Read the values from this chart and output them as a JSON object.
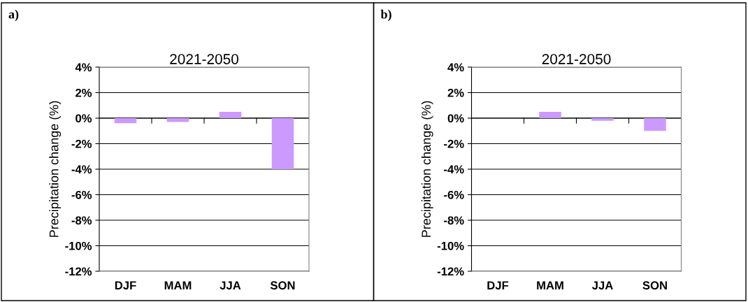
{
  "chart_data": [
    {
      "type": "bar",
      "title": "2021-2050",
      "ylabel": "Precipitation change (%)",
      "annotations": [
        "a)"
      ],
      "categories": [
        "DJF",
        "MAM",
        "JJA",
        "SON"
      ],
      "values": [
        -0.4,
        -0.3,
        0.5,
        -4.0
      ],
      "color": "#cc99ff",
      "ylim": [
        -12,
        4
      ],
      "yticks": [
        {
          "value": -12,
          "label": "-12%"
        },
        {
          "value": -10,
          "label": "-10%"
        },
        {
          "value": -8,
          "label": "-8%"
        },
        {
          "value": -6,
          "label": "-6%"
        },
        {
          "value": -4,
          "label": "-4%"
        },
        {
          "value": -2,
          "label": "-2%"
        },
        {
          "value": 0,
          "label": "0%"
        },
        {
          "value": 2,
          "label": "2%"
        },
        {
          "value": 4,
          "label": "4%"
        }
      ],
      "grid": "y"
    },
    {
      "type": "bar",
      "title": "2021-2050",
      "ylabel": "Precipitation change (%)",
      "annotations": [
        "b)"
      ],
      "categories": [
        "DJF",
        "MAM",
        "JJA",
        "SON"
      ],
      "values": [
        0,
        0.5,
        -0.2,
        -1.0
      ],
      "color": "#cc99ff",
      "ylim": [
        -12,
        4
      ],
      "yticks": [
        {
          "value": -12,
          "label": "-12%"
        },
        {
          "value": -10,
          "label": "-10%"
        },
        {
          "value": -8,
          "label": "-8%"
        },
        {
          "value": -6,
          "label": "-6%"
        },
        {
          "value": -4,
          "label": "-4%"
        },
        {
          "value": -2,
          "label": "-2%"
        },
        {
          "value": 0,
          "label": "0%"
        },
        {
          "value": 2,
          "label": "2%"
        },
        {
          "value": 4,
          "label": "4%"
        }
      ],
      "grid": "y"
    }
  ]
}
